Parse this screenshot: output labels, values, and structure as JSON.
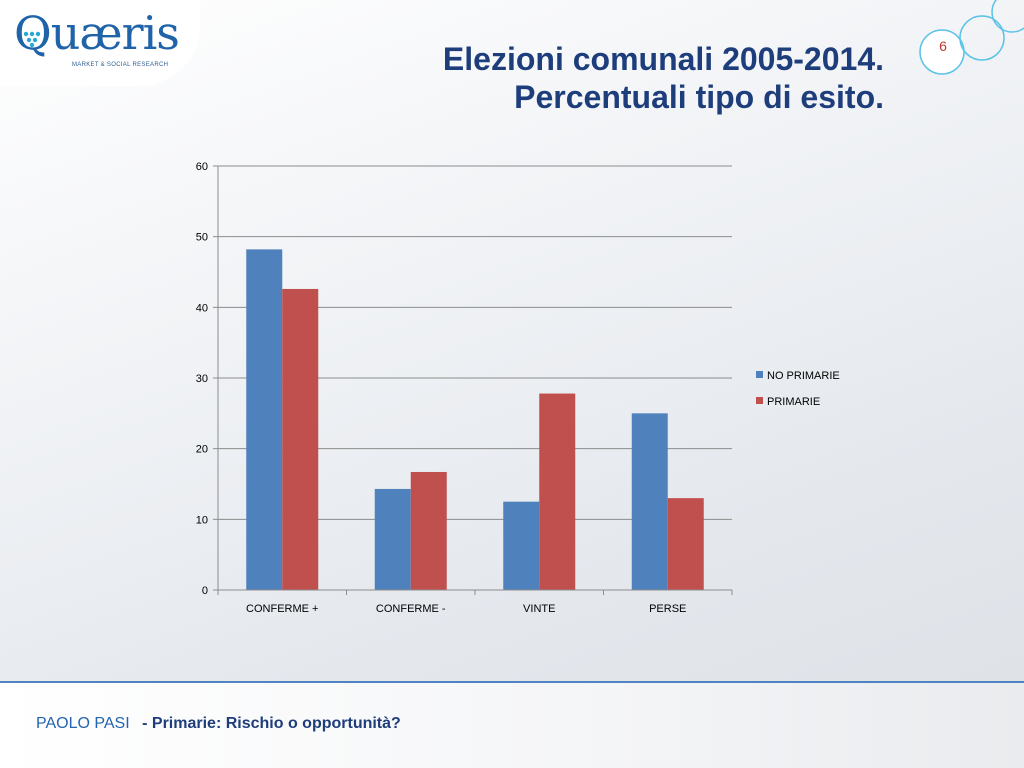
{
  "logo": {
    "text": "Quæris",
    "tagline": "MARKET & SOCIAL RESEARCH"
  },
  "title": {
    "line1": "Elezioni comunali 2005-2014.",
    "line2": "Percentuali tipo di esito."
  },
  "page_number": "6",
  "footer": {
    "author": "PAOLO PASI",
    "subtitle": "- Primarie: Rischio o opportunità?"
  },
  "colors": {
    "title": "#1e3d7b",
    "accent": "#4f83c2",
    "series_blue": "#4f81bd",
    "series_red": "#c0504d"
  },
  "chart_data": {
    "type": "bar",
    "categories": [
      "CONFERME +",
      "CONFERME -",
      "VINTE",
      "PERSE"
    ],
    "series": [
      {
        "name": "NO PRIMARIE",
        "color": "#4f81bd",
        "values": [
          48.2,
          14.3,
          12.5,
          25.0
        ]
      },
      {
        "name": "PRIMARIE",
        "color": "#c0504d",
        "values": [
          42.6,
          16.7,
          27.8,
          13.0
        ]
      }
    ],
    "ylim": [
      0,
      60
    ],
    "yticks": [
      0,
      10,
      20,
      30,
      40,
      50,
      60
    ],
    "grid": true,
    "legend": "right"
  }
}
